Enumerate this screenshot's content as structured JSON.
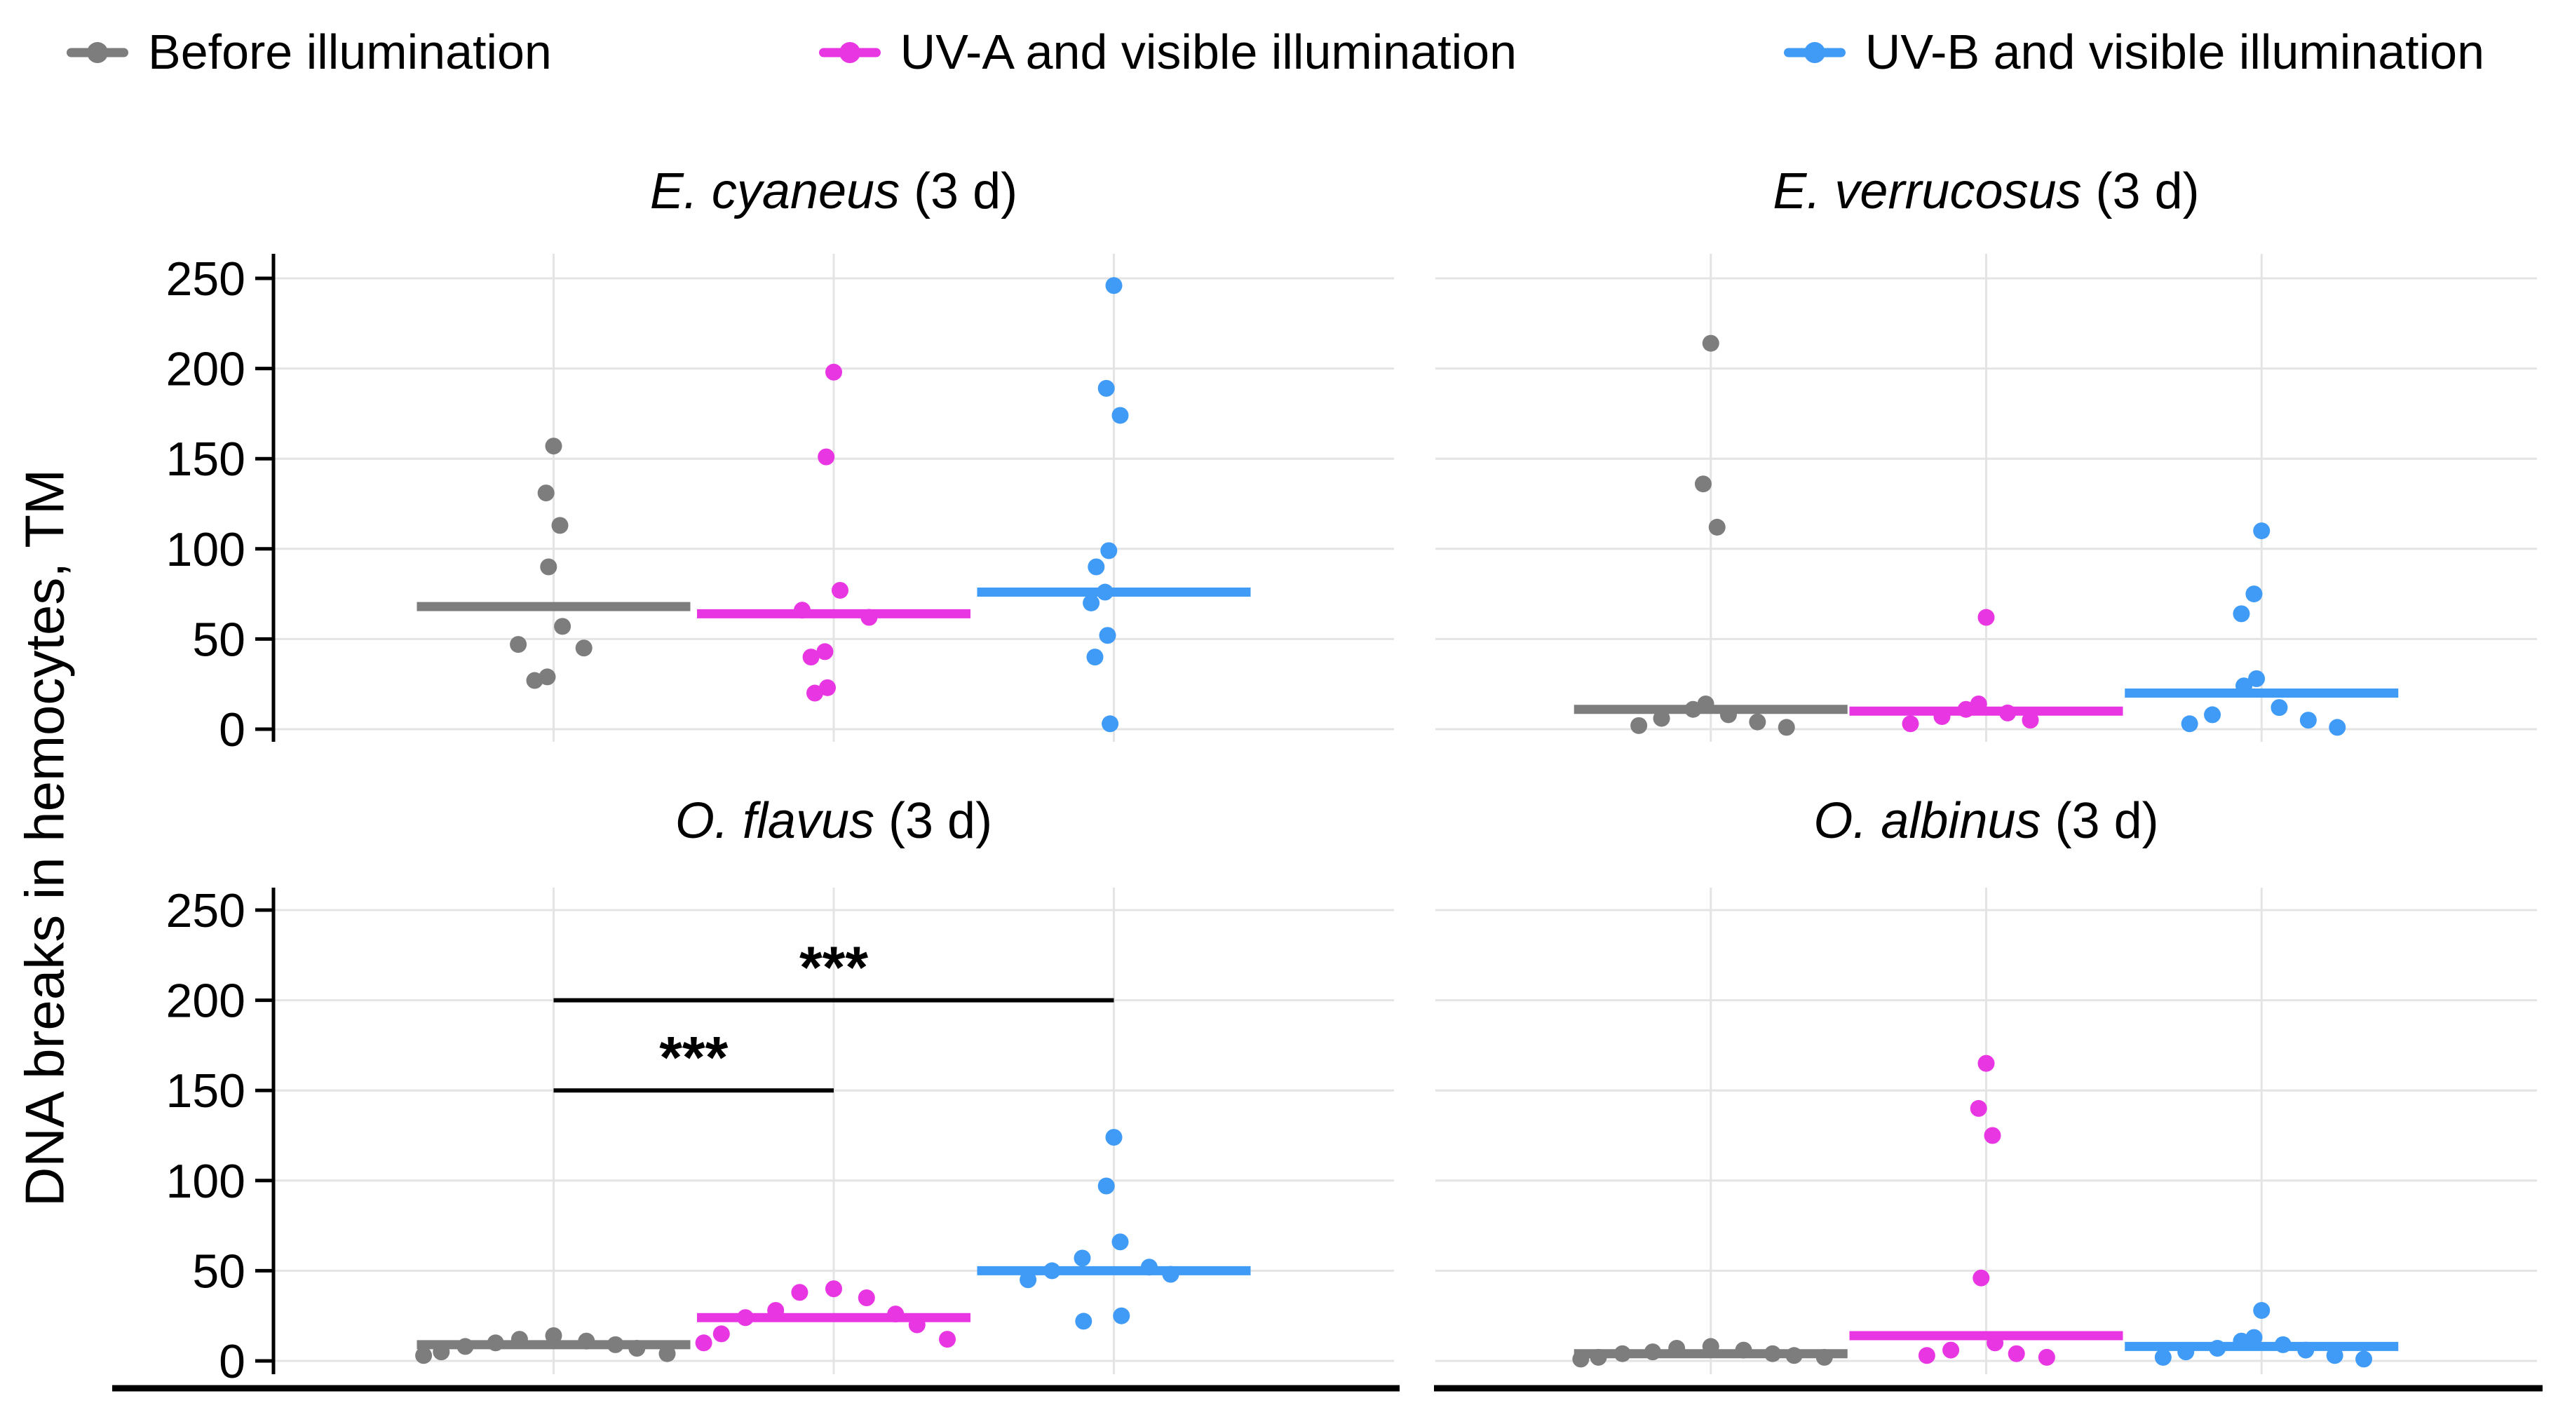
{
  "figure": {
    "background": "#ffffff"
  },
  "legend": {
    "entries": [
      {
        "label": "Before illumination",
        "color": "#7d7d7d"
      },
      {
        "label": "UV-A and visible illumination",
        "color": "#e936e3"
      },
      {
        "label": "UV-B and visible illumination",
        "color": "#3f9bf5"
      }
    ]
  },
  "axis": {
    "y_label": "DNA breaks in hemocytes, TM",
    "y_ticks": [
      0,
      50,
      100,
      150,
      200,
      250
    ]
  },
  "chart_data": {
    "type": "scatter",
    "title": "",
    "ylabel": "DNA breaks in hemocytes, TM",
    "ylim": [
      0,
      250
    ],
    "yticks": [
      0,
      50,
      100,
      150,
      200,
      250
    ],
    "grid": true,
    "legend_position": "top",
    "groups": [
      "Before illumination",
      "UV-A and visible illumination",
      "UV-B and visible illumination"
    ],
    "colors": [
      "#7d7d7d",
      "#e936e3",
      "#3f9bf5"
    ],
    "panels": [
      {
        "species": "E. cyaneus",
        "suffix": " (3 d)",
        "row": 0,
        "col": 0,
        "series": [
          {
            "name": "Before illumination",
            "mean": 68,
            "values": [
              157,
              131,
              113,
              90,
              57,
              47,
              45,
              29,
              27
            ]
          },
          {
            "name": "UV-A and visible illumination",
            "mean": 64,
            "values": [
              198,
              151,
              77,
              66,
              62,
              43,
              40,
              23,
              20
            ]
          },
          {
            "name": "UV-B and visible illumination",
            "mean": 76,
            "values": [
              246,
              189,
              174,
              99,
              90,
              76,
              70,
              52,
              40,
              3
            ]
          }
        ],
        "significance": []
      },
      {
        "species": "E. verrucosus",
        "suffix": " (3 d)",
        "row": 0,
        "col": 1,
        "series": [
          {
            "name": "Before illumination",
            "mean": 11,
            "values": [
              214,
              136,
              112,
              14,
              11,
              8,
              6,
              4,
              2,
              1
            ]
          },
          {
            "name": "UV-A and visible illumination",
            "mean": 10,
            "values": [
              62,
              14,
              11,
              9,
              7,
              5,
              3
            ]
          },
          {
            "name": "UV-B and visible illumination",
            "mean": 20,
            "values": [
              110,
              75,
              64,
              28,
              24,
              12,
              8,
              5,
              3,
              1
            ]
          }
        ],
        "significance": []
      },
      {
        "species": "O. flavus",
        "suffix": " (3 d)",
        "row": 1,
        "col": 0,
        "series": [
          {
            "name": "Before illumination",
            "mean": 9,
            "values": [
              14,
              12,
              11,
              10,
              9,
              8,
              7,
              5,
              4,
              3
            ]
          },
          {
            "name": "UV-A and visible illumination",
            "mean": 24,
            "values": [
              40,
              38,
              35,
              28,
              26,
              24,
              20,
              15,
              12,
              10
            ]
          },
          {
            "name": "UV-B and visible illumination",
            "mean": 50,
            "values": [
              124,
              97,
              66,
              57,
              52,
              50,
              48,
              45,
              25,
              22
            ]
          }
        ],
        "significance": [
          {
            "groups": [
              0,
              1
            ],
            "y": 150,
            "label": "***"
          },
          {
            "groups": [
              0,
              2
            ],
            "y": 200,
            "label": "***"
          }
        ]
      },
      {
        "species": "O. albinus",
        "suffix": " (3 d)",
        "row": 1,
        "col": 1,
        "series": [
          {
            "name": "Before illumination",
            "mean": 4,
            "values": [
              8,
              7,
              6,
              5,
              4,
              4,
              3,
              2,
              2,
              1
            ]
          },
          {
            "name": "UV-A and visible illumination",
            "mean": 14,
            "values": [
              165,
              140,
              125,
              46,
              10,
              6,
              4,
              3,
              2
            ]
          },
          {
            "name": "UV-B and visible illumination",
            "mean": 8,
            "values": [
              28,
              13,
              11,
              9,
              7,
              6,
              5,
              3,
              2,
              1
            ]
          }
        ],
        "significance": []
      }
    ]
  }
}
